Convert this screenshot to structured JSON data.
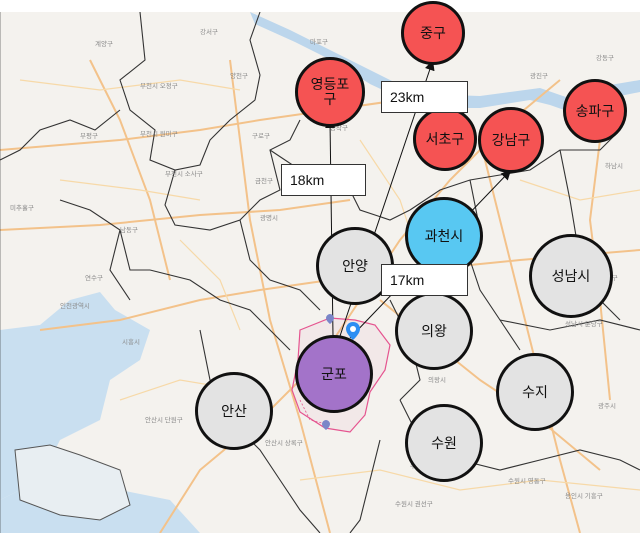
{
  "colors": {
    "seoul": "#f55353",
    "origin": "#a373c9",
    "highlight": "#58c8f2",
    "other": "#e3e3e3",
    "water": "#c9dff0",
    "river": "#bcd6ec",
    "road": "#f7c98b",
    "highway": "#f3b56a",
    "boundary": "#333333",
    "gunpo_outline": "#e5548f"
  },
  "circles": [
    {
      "id": "jung-gu",
      "label": "중구",
      "category": "seoul"
    },
    {
      "id": "yeongdeungpo-gu",
      "label": "영등포\n구",
      "category": "seoul"
    },
    {
      "id": "songpa-gu",
      "label": "송파구",
      "category": "seoul"
    },
    {
      "id": "seocho-gu",
      "label": "서초구",
      "category": "seoul"
    },
    {
      "id": "gangnam-gu",
      "label": "강남구",
      "category": "seoul"
    },
    {
      "id": "gwacheon-si",
      "label": "과천시",
      "category": "highlight"
    },
    {
      "id": "anyang",
      "label": "안양",
      "category": "other"
    },
    {
      "id": "seongnam-si",
      "label": "성남시",
      "category": "other"
    },
    {
      "id": "uiwang",
      "label": "의왕",
      "category": "other"
    },
    {
      "id": "gunpo",
      "label": "군포",
      "category": "origin"
    },
    {
      "id": "ansan",
      "label": "안산",
      "category": "other"
    },
    {
      "id": "suji",
      "label": "수지",
      "category": "other"
    },
    {
      "id": "suwon",
      "label": "수원",
      "category": "other"
    }
  ],
  "distances": [
    {
      "to": "yeongdeungpo-gu",
      "label": "18km"
    },
    {
      "to": "jung-gu",
      "label": "23km"
    },
    {
      "to": "gangnam-gu",
      "label": "17km"
    }
  ],
  "place_labels": [
    "계양구",
    "강서구",
    "부천시 오정구",
    "부천시 원미구",
    "부천시 소사구",
    "부평구",
    "미추홀구",
    "남동구",
    "연수구",
    "양천구",
    "구로구",
    "금천구",
    "광명시",
    "동작구",
    "관악구",
    "마포구",
    "광진구",
    "강동구",
    "시흥시",
    "안산시 단원구",
    "안산시 상록구",
    "의왕시",
    "수원시 장안구",
    "수원시 팔달구",
    "수원시 권선구",
    "수원시 영통구",
    "용인시 기흥구",
    "성남시 분당구",
    "성남시 중원구",
    "하남시",
    "인천광역시",
    "광주시"
  ]
}
